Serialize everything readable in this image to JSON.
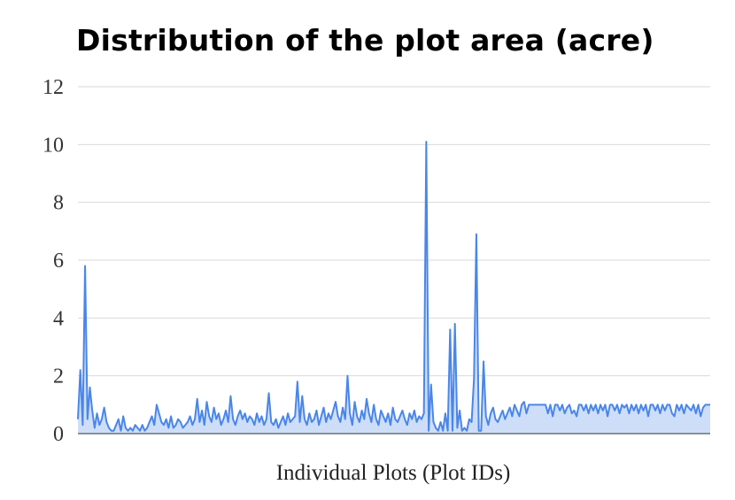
{
  "chart_data": {
    "type": "area",
    "title": "Distribution of the plot area (acre)",
    "xlabel": "Individual Plots (Plot IDs)",
    "ylabel": "",
    "ylim": [
      0,
      12
    ],
    "yticks": [
      "0",
      "2",
      "4",
      "6",
      "8",
      "10",
      "12"
    ],
    "grid": true,
    "legend": "none",
    "colors": {
      "line": "#4a86e8",
      "fill": "#c9daf8",
      "grid": "#d9d9d9"
    },
    "series": [
      {
        "values": [
          0.5,
          2.2,
          0.3,
          5.8,
          0.5,
          1.6,
          0.8,
          0.2,
          0.7,
          0.3,
          0.5,
          0.9,
          0.4,
          0.2,
          0.1,
          0.1,
          0.3,
          0.5,
          0.1,
          0.6,
          0.2,
          0.1,
          0.2,
          0.1,
          0.3,
          0.2,
          0.1,
          0.3,
          0.1,
          0.2,
          0.4,
          0.6,
          0.3,
          1.0,
          0.7,
          0.4,
          0.3,
          0.5,
          0.2,
          0.6,
          0.2,
          0.3,
          0.5,
          0.4,
          0.2,
          0.3,
          0.4,
          0.6,
          0.3,
          0.5,
          1.2,
          0.4,
          0.8,
          0.3,
          1.1,
          0.6,
          0.4,
          0.9,
          0.5,
          0.7,
          0.3,
          0.5,
          0.8,
          0.4,
          1.3,
          0.5,
          0.3,
          0.6,
          0.8,
          0.5,
          0.7,
          0.4,
          0.6,
          0.5,
          0.3,
          0.7,
          0.4,
          0.6,
          0.3,
          0.5,
          1.4,
          0.4,
          0.3,
          0.5,
          0.2,
          0.4,
          0.6,
          0.3,
          0.7,
          0.4,
          0.5,
          0.6,
          1.8,
          0.4,
          1.3,
          0.5,
          0.3,
          0.7,
          0.4,
          0.5,
          0.8,
          0.3,
          0.6,
          0.9,
          0.4,
          0.7,
          0.5,
          0.8,
          1.1,
          0.6,
          0.4,
          0.9,
          0.5,
          2.0,
          0.7,
          0.3,
          1.1,
          0.6,
          0.4,
          0.8,
          0.5,
          1.2,
          0.7,
          0.4,
          1.0,
          0.5,
          0.3,
          0.8,
          0.6,
          0.4,
          0.7,
          0.3,
          0.9,
          0.5,
          0.4,
          0.6,
          0.8,
          0.5,
          0.3,
          0.7,
          0.5,
          0.8,
          0.4,
          0.6,
          0.5,
          0.7,
          10.1,
          0.1,
          1.7,
          0.4,
          0.2,
          0.1,
          0.4,
          0.1,
          0.7,
          0.1,
          3.6,
          0.1,
          3.8,
          0.2,
          0.8,
          0.1,
          0.2,
          0.1,
          0.5,
          0.4,
          1.9,
          6.9,
          0.1,
          0.1,
          2.5,
          0.6,
          0.3,
          0.7,
          0.9,
          0.5,
          0.4,
          0.6,
          0.8,
          0.5,
          0.7,
          0.9,
          0.6,
          1.0,
          0.8,
          0.6,
          1.0,
          1.1,
          0.7,
          1.0,
          1.0,
          1.0,
          1.0,
          1.0,
          1.0,
          1.0,
          1.0,
          0.7,
          1.0,
          0.6,
          1.0,
          1.0,
          0.8,
          1.0,
          0.7,
          0.9,
          1.0,
          0.7,
          0.8,
          0.6,
          1.0,
          1.0,
          0.8,
          1.0,
          0.7,
          1.0,
          0.8,
          1.0,
          0.7,
          1.0,
          0.8,
          1.0,
          0.6,
          1.0,
          1.0,
          0.8,
          1.0,
          0.7,
          1.0,
          0.9,
          1.0,
          0.7,
          1.0,
          0.8,
          1.0,
          0.7,
          1.0,
          0.8,
          1.0,
          0.6,
          1.0,
          1.0,
          0.8,
          1.0,
          0.7,
          1.0,
          0.8,
          1.0,
          1.0,
          0.7,
          0.6,
          1.0,
          0.8,
          1.0,
          0.7,
          1.0,
          0.9,
          0.8,
          1.0,
          0.7,
          1.0,
          0.6,
          0.9,
          1.0,
          1.0,
          1.0
        ]
      }
    ]
  }
}
